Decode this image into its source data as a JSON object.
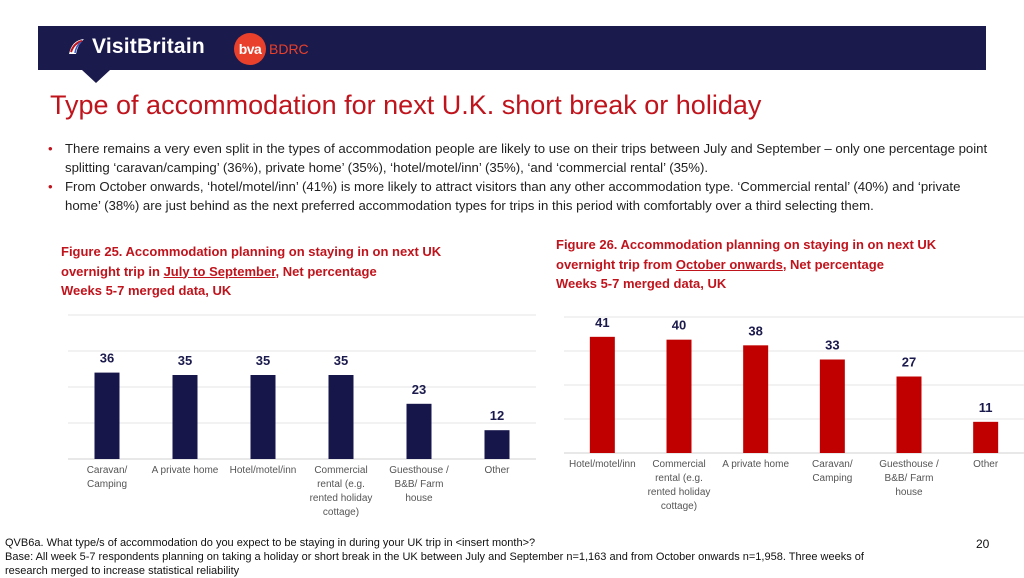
{
  "header": {
    "brand_name": "VisitBritain",
    "partner_name": "BDRC",
    "partner_badge": "bva"
  },
  "title": "Type of accommodation for next U.K. short break or holiday",
  "bullets": [
    "There remains a very even split in the types of accommodation people are likely to use on their trips between July and September – only one percentage point splitting ‘caravan/camping’ (36%), private home’ (35%), ‘hotel/motel/inn’ (35%), ‘and ‘commercial rental’ (35%).",
    "From October onwards, ‘hotel/motel/inn’ (41%) is more likely to attract visitors than any other accommodation type. ‘Commercial rental’ (40%) and ‘private home’ (38%) are just behind as the next preferred accommodation types for trips in this period with comfortably over a third selecting them."
  ],
  "figure1": {
    "caption_pre": "Figure 25. Accommodation planning on staying in on next UK overnight trip in ",
    "caption_underlined": "July to September",
    "caption_post": ", Net percentage",
    "caption_line3": "Weeks 5-7 merged data, UK"
  },
  "figure2": {
    "caption_pre": "Figure 26. Accommodation planning on staying in on next UK overnight trip from ",
    "caption_underlined": "October onwards",
    "caption_post": ", Net percentage",
    "caption_line3": "Weeks 5-7 merged data, UK"
  },
  "chart_data": [
    {
      "type": "bar",
      "title": "Figure 25. Accommodation planning on staying in on next UK overnight trip in July to September, Net percentage",
      "categories": [
        [
          "Caravan/",
          "Camping"
        ],
        [
          "A private home"
        ],
        [
          "Hotel/motel/inn"
        ],
        [
          "Commercial",
          "rental (e.g.",
          "rented holiday",
          "cottage)"
        ],
        [
          "Guesthouse /",
          "B&B/ Farm",
          "house"
        ],
        [
          "Other"
        ]
      ],
      "values": [
        36,
        35,
        35,
        35,
        23,
        12
      ],
      "color": "#17164b",
      "ylim": [
        0,
        60
      ],
      "grid": true
    },
    {
      "type": "bar",
      "title": "Figure 26. Accommodation planning on staying in on next UK overnight trip from October onwards, Net percentage",
      "categories": [
        [
          "Hotel/motel/inn"
        ],
        [
          "Commercial",
          "rental (e.g.",
          "rented holiday",
          "cottage)"
        ],
        [
          "A private home"
        ],
        [
          "Caravan/",
          "Camping"
        ],
        [
          "Guesthouse /",
          "B&B/ Farm",
          "house"
        ],
        [
          "Other"
        ]
      ],
      "values": [
        41,
        40,
        38,
        33,
        27,
        11
      ],
      "color": "#c00000",
      "ylim": [
        0,
        60
      ],
      "grid": true
    }
  ],
  "footer": {
    "question": "QVB6a. What type/s of accommodation do you expect to be staying in during your UK trip in <insert month>?",
    "base": "Base: All week 5-7 respondents planning on taking a holiday or short break in the UK between July and September n=1,163 and from October onwards n=1,958. Three weeks of research merged to increase statistical reliability",
    "page_number": "20"
  }
}
